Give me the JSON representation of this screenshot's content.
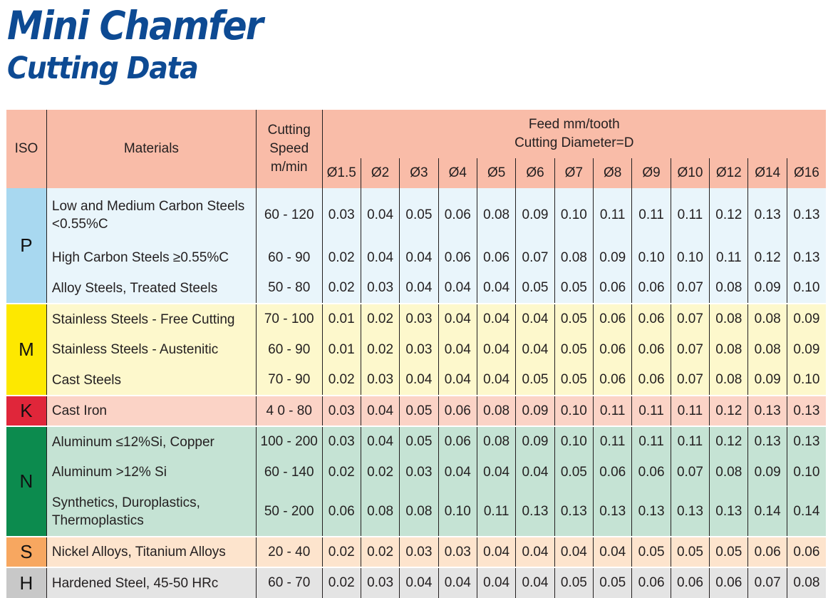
{
  "title": {
    "line1": "Mini Chamfer",
    "line2": "Cutting Data"
  },
  "header": {
    "iso": "ISO",
    "materials": "Materials",
    "speed_line1": "Cutting",
    "speed_line2": "Speed",
    "speed_line3": "m/min",
    "feed_line1": "Feed mm/tooth",
    "feed_line2": "Cutting Diameter=D",
    "diameters": [
      "Ø1.5",
      "Ø2",
      "Ø3",
      "Ø4",
      "Ø5",
      "Ø6",
      "Ø7",
      "Ø8",
      "Ø9",
      "Ø10",
      "Ø12",
      "Ø14",
      "Ø16"
    ]
  },
  "iso_groups": {
    "P": "P",
    "M": "M",
    "K": "K",
    "N": "N",
    "S": "S",
    "H": "H"
  },
  "colors": {
    "title": "#0d4a93",
    "header": "#f9bca8",
    "P": "#a8d8f0",
    "M": "#fde800",
    "K": "#e0263a",
    "N": "#0c8b4e",
    "S": "#f7a760",
    "H": "#c8c8c8"
  },
  "rows": [
    {
      "iso": "P",
      "material": "Low and Medium Carbon Steels <0.55%C",
      "speed": "60 - 120",
      "feeds": [
        "0.03",
        "0.04",
        "0.05",
        "0.06",
        "0.08",
        "0.09",
        "0.10",
        "0.11",
        "0.11",
        "0.11",
        "0.12",
        "0.13",
        "0.13"
      ]
    },
    {
      "iso": "P",
      "material": "High Carbon Steels ≥0.55%C",
      "speed": "60 - 90",
      "feeds": [
        "0.02",
        "0.04",
        "0.04",
        "0.06",
        "0.06",
        "0.07",
        "0.08",
        "0.09",
        "0.10",
        "0.10",
        "0.11",
        "0.12",
        "0.13"
      ]
    },
    {
      "iso": "P",
      "material": "Alloy Steels, Treated Steels",
      "speed": "50 - 80",
      "feeds": [
        "0.02",
        "0.03",
        "0.04",
        "0.04",
        "0.04",
        "0.05",
        "0.05",
        "0.06",
        "0.06",
        "0.07",
        "0.08",
        "0.09",
        "0.10"
      ]
    },
    {
      "iso": "M",
      "material": "Stainless Steels - Free Cutting",
      "speed": "70 - 100",
      "feeds": [
        "0.01",
        "0.02",
        "0.03",
        "0.04",
        "0.04",
        "0.04",
        "0.05",
        "0.06",
        "0.06",
        "0.07",
        "0.08",
        "0.08",
        "0.09"
      ]
    },
    {
      "iso": "M",
      "material": "Stainless Steels - Austenitic",
      "speed": "60 - 90",
      "feeds": [
        "0.01",
        "0.02",
        "0.03",
        "0.04",
        "0.04",
        "0.04",
        "0.05",
        "0.06",
        "0.06",
        "0.07",
        "0.08",
        "0.08",
        "0.09"
      ]
    },
    {
      "iso": "M",
      "material": "Cast Steels",
      "speed": "70 - 90",
      "feeds": [
        "0.02",
        "0.03",
        "0.04",
        "0.04",
        "0.04",
        "0.05",
        "0.05",
        "0.06",
        "0.06",
        "0.07",
        "0.08",
        "0.09",
        "0.10"
      ]
    },
    {
      "iso": "K",
      "material": "Cast Iron",
      "speed": "4 0 - 80",
      "feeds": [
        "0.03",
        "0.04",
        "0.05",
        "0.06",
        "0.08",
        "0.09",
        "0.10",
        "0.11",
        "0.11",
        "0.11",
        "0.12",
        "0.13",
        "0.13"
      ]
    },
    {
      "iso": "N",
      "material": "Aluminum ≤12%Si, Copper",
      "speed": "100 - 200",
      "feeds": [
        "0.03",
        "0.04",
        "0.05",
        "0.06",
        "0.08",
        "0.09",
        "0.10",
        "0.11",
        "0.11",
        "0.11",
        "0.12",
        "0.13",
        "0.13"
      ]
    },
    {
      "iso": "N",
      "material": "Aluminum >12% Si",
      "speed": "60 - 140",
      "feeds": [
        "0.02",
        "0.02",
        "0.03",
        "0.04",
        "0.04",
        "0.04",
        "0.05",
        "0.06",
        "0.06",
        "0.07",
        "0.08",
        "0.09",
        "0.10"
      ]
    },
    {
      "iso": "N",
      "material": "Synthetics, Duroplastics, Thermoplastics",
      "speed": "50 - 200",
      "feeds": [
        "0.06",
        "0.08",
        "0.08",
        "0.10",
        "0.11",
        "0.13",
        "0.13",
        "0.13",
        "0.13",
        "0.13",
        "0.13",
        "0.14",
        "0.14"
      ]
    },
    {
      "iso": "S",
      "material": "Nickel Alloys, Titanium Alloys",
      "speed": "20 - 40",
      "feeds": [
        "0.02",
        "0.02",
        "0.03",
        "0.03",
        "0.04",
        "0.04",
        "0.04",
        "0.04",
        "0.05",
        "0.05",
        "0.05",
        "0.06",
        "0.06"
      ]
    },
    {
      "iso": "H",
      "material": "Hardened Steel, 45-50 HRc",
      "speed": "60 - 70",
      "feeds": [
        "0.02",
        "0.03",
        "0.04",
        "0.04",
        "0.04",
        "0.04",
        "0.05",
        "0.05",
        "0.06",
        "0.06",
        "0.06",
        "0.07",
        "0.08"
      ]
    }
  ]
}
